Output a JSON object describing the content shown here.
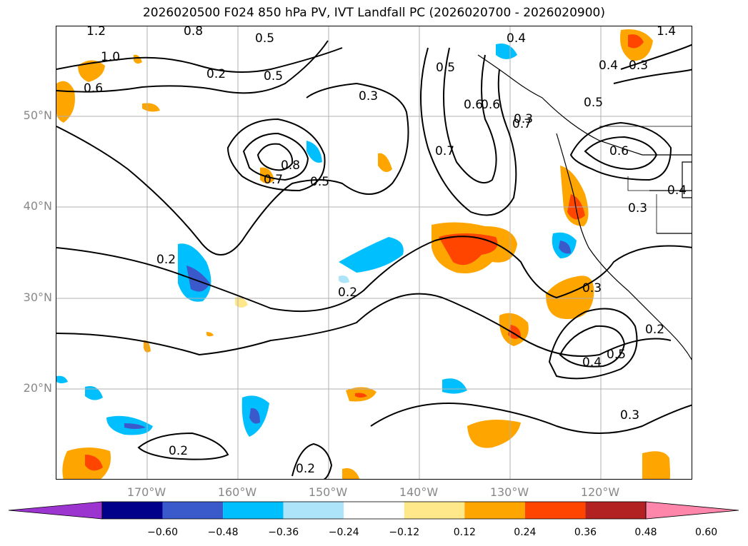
{
  "title": "2026020500 F024 850 hPa PV, IVT Landfall PC (2026020700 - 2026020900)",
  "latitudes": [
    "50°N",
    "40°N",
    "30°N",
    "20°N"
  ],
  "longitudes": [
    "170°W",
    "160°W",
    "150°W",
    "140°W",
    "130°W",
    "120°W"
  ],
  "contour_labels": [
    "1.2",
    "0.8",
    "0.5",
    "1.0",
    "0.6",
    "0.5",
    "0.3",
    "0.5",
    "0.6",
    "0.4",
    "1.4",
    "0.4",
    "0.3",
    "0.2",
    "0.7",
    "0.6",
    "0.8",
    "0.7",
    "0.5",
    "0.7",
    "0.6",
    "0.5",
    "0.3",
    "0.4",
    "0.3",
    "0.2",
    "0.2",
    "0.3",
    "0.5",
    "0.4",
    "0.2",
    "0.3",
    "0.2",
    "0.2"
  ],
  "colorbar": {
    "colors": [
      "#9c34d0",
      "#00008b",
      "#3a5acc",
      "#00bfff",
      "#aee4fa",
      "#ffffff",
      "#ffe88a",
      "#ffa500",
      "#ff4500",
      "#b22222",
      "#ff86ab"
    ],
    "ticks": [
      "−0.60",
      "−0.48",
      "−0.36",
      "−0.24",
      "−0.12",
      "0.12",
      "0.24",
      "0.36",
      "0.48",
      "0.60"
    ]
  }
}
